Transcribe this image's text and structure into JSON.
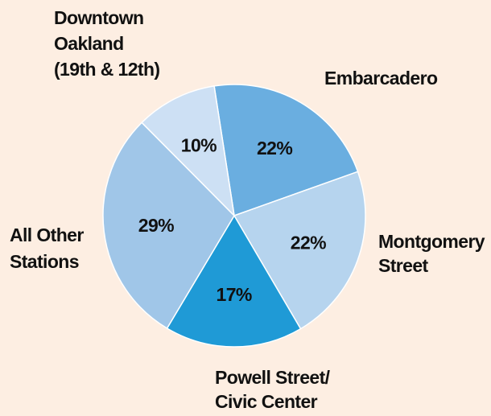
{
  "chart_data": {
    "type": "pie",
    "categories": [
      [
        "Embarcadero"
      ],
      [
        "Montgomery",
        "Street"
      ],
      [
        "Powell Street/",
        "Civic Center"
      ],
      [
        "All Other",
        "Stations"
      ],
      [
        "Downtown",
        "Oakland",
        "(19th & 12th)"
      ]
    ],
    "values": [
      22,
      22,
      17,
      29,
      10
    ],
    "value_labels": [
      "22%",
      "22%",
      "17%",
      "29%",
      "10%"
    ],
    "colors": [
      "#6aaee0",
      "#b6d4ee",
      "#1f9ad6",
      "#a0c6e8",
      "#cde0f4"
    ]
  }
}
